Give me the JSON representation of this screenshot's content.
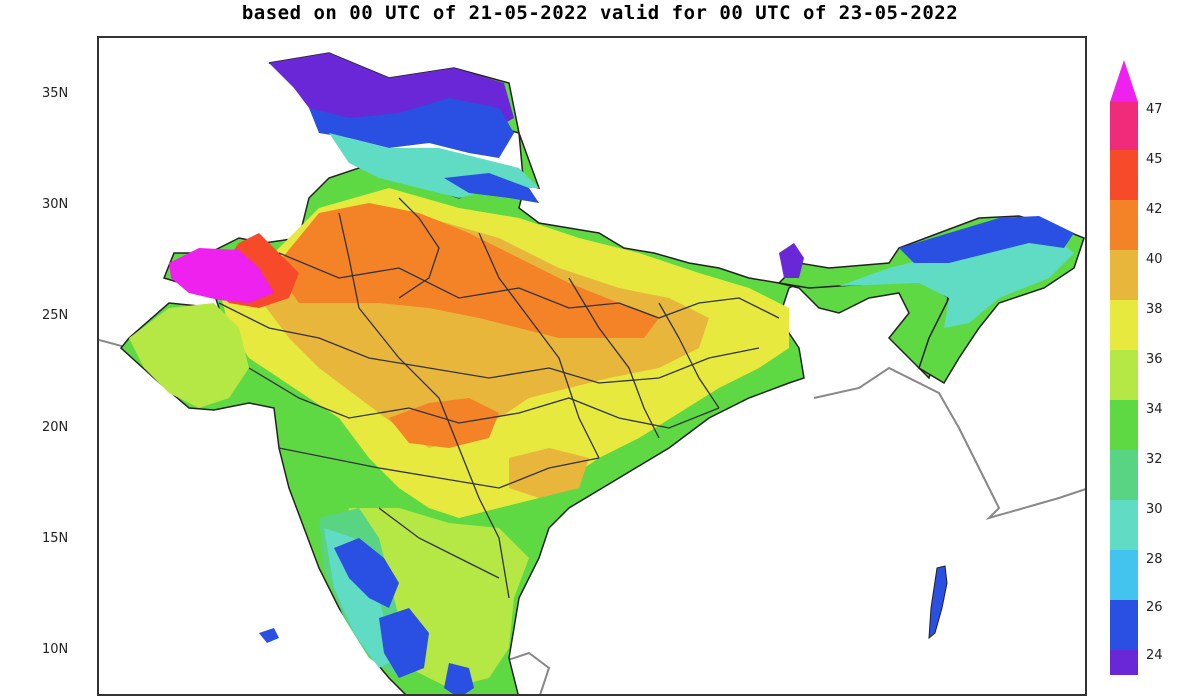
{
  "title": "based on 00 UTC of 21-05-2022 valid for 00 UTC of 23-05-2022",
  "latitude_labels": [
    "35N",
    "30N",
    "25N",
    "20N",
    "15N",
    "10N"
  ],
  "legend": {
    "labels": [
      "47",
      "45",
      "42",
      "40",
      "38",
      "36",
      "34",
      "32",
      "30",
      "28",
      "26",
      "24"
    ],
    "colors": [
      "#ef2b7a",
      "#f64a2a",
      "#f48226",
      "#e9b63c",
      "#e7e93e",
      "#b5e745",
      "#5ed943",
      "#58d482",
      "#5fdcc3",
      "#42c4ef",
      "#2a4fe3",
      "#6a27d8",
      "#ee21ee"
    ]
  },
  "map_colors": {
    "hot_extreme": "#ee21ee",
    "very_hot": "#f64a2a",
    "hot": "#f48226",
    "warm_orange": "#e9b63c",
    "yellow": "#e7e93e",
    "light_green": "#b5e745",
    "green": "#5ed943",
    "teal": "#58d482",
    "cyan": "#5fdcc3",
    "blue": "#2a4fe3",
    "purple": "#6a27d8"
  }
}
